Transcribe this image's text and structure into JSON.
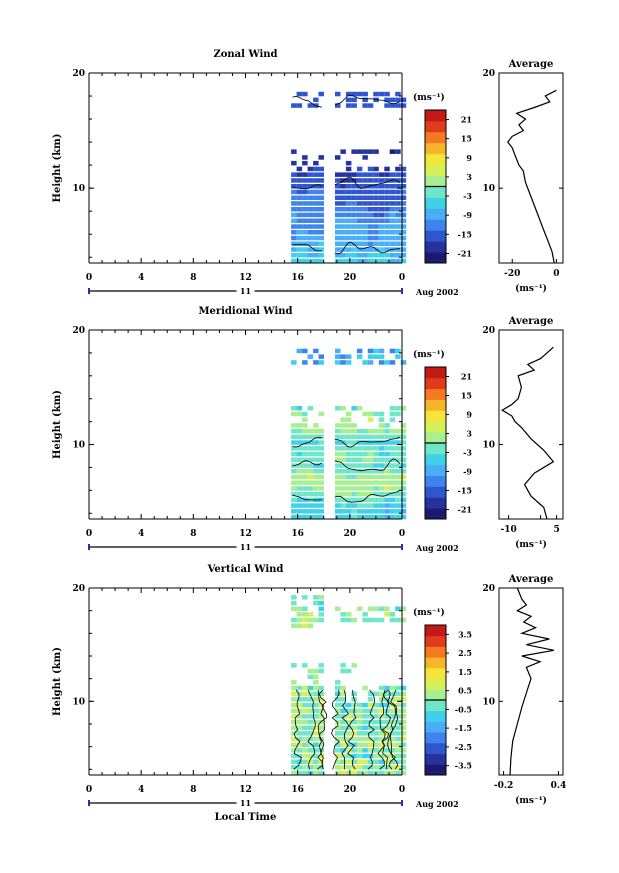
{
  "chart_data": [
    {
      "type": "heatmap",
      "title": "Zonal Wind",
      "ylabel": "Height (km)",
      "yticks": [
        "20",
        "10"
      ],
      "ylim": [
        3.5,
        20
      ],
      "xlim": [
        0,
        24
      ],
      "xticks": [
        "0",
        "4",
        "8",
        "12",
        "16",
        "20",
        "0"
      ],
      "date_label": "11",
      "date_note": "Aug 2002",
      "colorbar": {
        "unit": "(ms⁻¹)",
        "ticks": [
          "21",
          "15",
          "9",
          "3",
          "-3",
          "-9",
          "-15",
          "-21"
        ],
        "range": [
          -24,
          24
        ],
        "colors": [
          "#1a1a6e",
          "#2433a0",
          "#2f56d0",
          "#3f84ec",
          "#49aef6",
          "#3fd0ea",
          "#70e6c8",
          "#a8ef92",
          "#d6f05a",
          "#f5e537",
          "#f8b52c",
          "#f47a22",
          "#e23a1c",
          "#c41a17"
        ]
      },
      "profile": {
        "title": "Average",
        "xticks": [
          "-20",
          "0"
        ],
        "xlim": [
          -26,
          3
        ],
        "xunit": "(ms⁻¹)",
        "heights": [
          3.5,
          4.5,
          5.5,
          6.5,
          7.5,
          8.5,
          9.5,
          10.5,
          11.5,
          12,
          13,
          13.5,
          14,
          14.5,
          15,
          15.5,
          16,
          16.5,
          17,
          17.5,
          18,
          18.5
        ],
        "values": [
          -1,
          -2,
          -4,
          -6,
          -8,
          -10,
          -12,
          -14,
          -15,
          -17,
          -19,
          -20,
          -22,
          -20,
          -15,
          -17,
          -14,
          -18,
          -10,
          -3,
          -5,
          0
        ]
      }
    },
    {
      "type": "heatmap",
      "title": "Meridional Wind",
      "ylabel": "Height (km)",
      "yticks": [
        "20",
        "10"
      ],
      "ylim": [
        3.5,
        20
      ],
      "xlim": [
        0,
        24
      ],
      "xticks": [
        "0",
        "4",
        "8",
        "12",
        "16",
        "20",
        "0"
      ],
      "date_label": "11",
      "date_note": "Aug 2002",
      "colorbar": {
        "unit": "(ms⁻¹)",
        "ticks": [
          "21",
          "15",
          "9",
          "3",
          "-3",
          "-9",
          "-15",
          "-21"
        ],
        "range": [
          -24,
          24
        ],
        "colors": [
          "#1a1a6e",
          "#2433a0",
          "#2f56d0",
          "#3f84ec",
          "#49aef6",
          "#3fd0ea",
          "#70e6c8",
          "#a8ef92",
          "#d6f05a",
          "#f5e537",
          "#f8b52c",
          "#f47a22",
          "#e23a1c",
          "#c41a17"
        ]
      },
      "profile": {
        "title": "Average",
        "xticks": [
          "-10",
          "0",
          "5"
        ],
        "xlim": [
          -13,
          7
        ],
        "xunit": "(ms⁻¹)",
        "heights": [
          3.5,
          4.5,
          5.5,
          6.5,
          7.5,
          8.5,
          9.5,
          10.5,
          11.5,
          12,
          12.5,
          13,
          13.5,
          14,
          15,
          16,
          16.5,
          17,
          17.5,
          18,
          18.5
        ],
        "values": [
          2,
          1,
          -3,
          -5,
          -2,
          4,
          1,
          -3,
          -6,
          -8,
          -9,
          -12,
          -9,
          -7,
          -6,
          -7,
          -2,
          -4,
          0,
          2,
          4
        ]
      }
    },
    {
      "type": "heatmap",
      "title": "Vertical Wind",
      "ylabel": "Height (km)",
      "yticks": [
        "20",
        "10"
      ],
      "ylim": [
        3.5,
        20
      ],
      "xlim": [
        0,
        24
      ],
      "xticks": [
        "0",
        "4",
        "8",
        "12",
        "16",
        "20",
        "0"
      ],
      "xlabel": "Local Time",
      "date_label": "11",
      "date_note": "Aug 2002",
      "colorbar": {
        "unit": "(ms⁻¹)",
        "ticks": [
          "3.5",
          "2.5",
          "1.5",
          "0.5",
          "-0.5",
          "-1.5",
          "-2.5",
          "-3.5"
        ],
        "range": [
          -4,
          4
        ],
        "colors": [
          "#1a1a6e",
          "#2433a0",
          "#2f56d0",
          "#3f84ec",
          "#49aef6",
          "#3fd0ea",
          "#70e6c8",
          "#a8ef92",
          "#d6f05a",
          "#f5e537",
          "#f8b52c",
          "#f47a22",
          "#e23a1c",
          "#c41a17"
        ]
      },
      "profile": {
        "title": "Average",
        "xticks": [
          "-0.2",
          "0.4"
        ],
        "xlim": [
          -0.25,
          0.45
        ],
        "xunit": "(ms⁻¹)",
        "heights": [
          3.5,
          5,
          6.5,
          8,
          9.5,
          11,
          12,
          13,
          13.5,
          14,
          14.5,
          15,
          15.5,
          16,
          16.5,
          17,
          17.5,
          18,
          18.5,
          19,
          20
        ],
        "values": [
          -0.13,
          -0.12,
          -0.1,
          -0.05,
          0.0,
          0.06,
          0.1,
          0.05,
          0.2,
          0.0,
          0.35,
          0.05,
          0.3,
          0.0,
          0.15,
          0.02,
          0.1,
          -0.05,
          0.05,
          0.0,
          -0.05
        ]
      }
    }
  ]
}
